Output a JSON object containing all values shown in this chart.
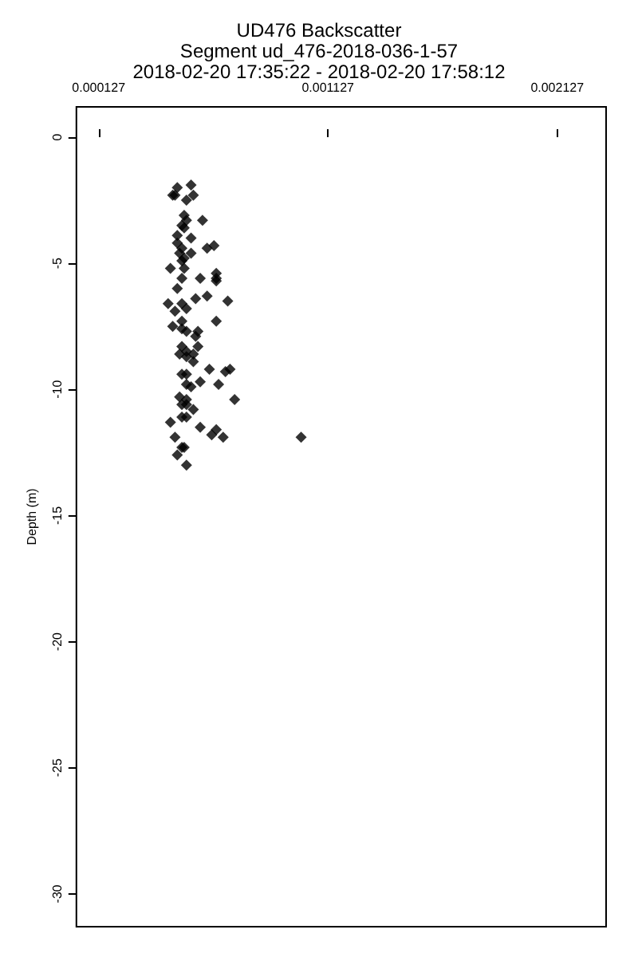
{
  "chart_data": {
    "type": "scatter",
    "title": "UD476 Backscatter",
    "subtitle": "Segment ud_476-2018-036-1-57",
    "annotations": [
      "2018-02-20 17:35:22 - 2018-02-20 17:58:12"
    ],
    "ylabel": "Depth (m)",
    "x": [
      0.00047,
      0.00053,
      0.00045,
      0.00046,
      0.00051,
      0.00054,
      0.0005,
      0.00049,
      0.00051,
      0.0005,
      0.00058,
      0.00047,
      0.00053,
      0.00047,
      0.00049,
      0.0006,
      0.00063,
      0.00048,
      0.0005,
      0.00053,
      0.00049,
      0.0005,
      0.00044,
      0.00049,
      0.00057,
      0.00064,
      0.00064,
      0.00064,
      0.00047,
      0.00069,
      0.0006,
      0.00055,
      0.00043,
      0.00049,
      0.00046,
      0.00051,
      0.00064,
      0.00045,
      0.00049,
      0.00049,
      0.00051,
      0.00056,
      0.00055,
      0.00056,
      0.00049,
      0.00051,
      0.00048,
      0.00054,
      0.00051,
      0.00054,
      0.00061,
      0.0007,
      0.00068,
      0.00049,
      0.00051,
      0.00057,
      0.00065,
      0.00051,
      0.00053,
      0.00048,
      0.00051,
      0.00072,
      0.00049,
      0.00051,
      0.00054,
      0.00049,
      0.00051,
      0.00044,
      0.00057,
      0.00064,
      0.00062,
      0.00067,
      0.00046,
      0.00049,
      0.0005,
      0.00101,
      0.00047,
      0.00051
    ],
    "values": [
      -2.0,
      -1.9,
      -2.3,
      -2.3,
      -2.5,
      -2.3,
      -3.1,
      -3.5,
      -3.3,
      -3.6,
      -3.3,
      -3.9,
      -4.0,
      -4.2,
      -4.4,
      -4.4,
      -4.3,
      -4.6,
      -4.8,
      -4.6,
      -4.9,
      -5.2,
      -5.2,
      -5.6,
      -5.6,
      -5.4,
      -5.6,
      -5.7,
      -6.0,
      -6.5,
      -6.3,
      -6.4,
      -6.6,
      -6.6,
      -6.9,
      -6.8,
      -7.3,
      -7.5,
      -7.3,
      -7.6,
      -7.7,
      -7.7,
      -7.9,
      -8.3,
      -8.3,
      -8.5,
      -8.6,
      -8.6,
      -8.7,
      -8.9,
      -9.2,
      -9.2,
      -9.3,
      -9.4,
      -9.4,
      -9.7,
      -9.8,
      -9.8,
      -9.9,
      -10.3,
      -10.4,
      -10.4,
      -10.6,
      -10.6,
      -10.8,
      -11.1,
      -11.1,
      -11.3,
      -11.5,
      -11.6,
      -11.8,
      -11.9,
      -11.9,
      -12.3,
      -12.3,
      -11.9,
      -12.6,
      -13.0
    ],
    "color": "#000000",
    "marker": "diamond",
    "xlim": [
      3e-05,
      0.00234
    ],
    "xticks": [
      0.000127,
      0.001127,
      0.002127
    ],
    "ylim": [
      -31.3,
      1.2
    ],
    "yticks": [
      0,
      -5,
      -10,
      -15,
      -20,
      -25,
      -30
    ]
  }
}
